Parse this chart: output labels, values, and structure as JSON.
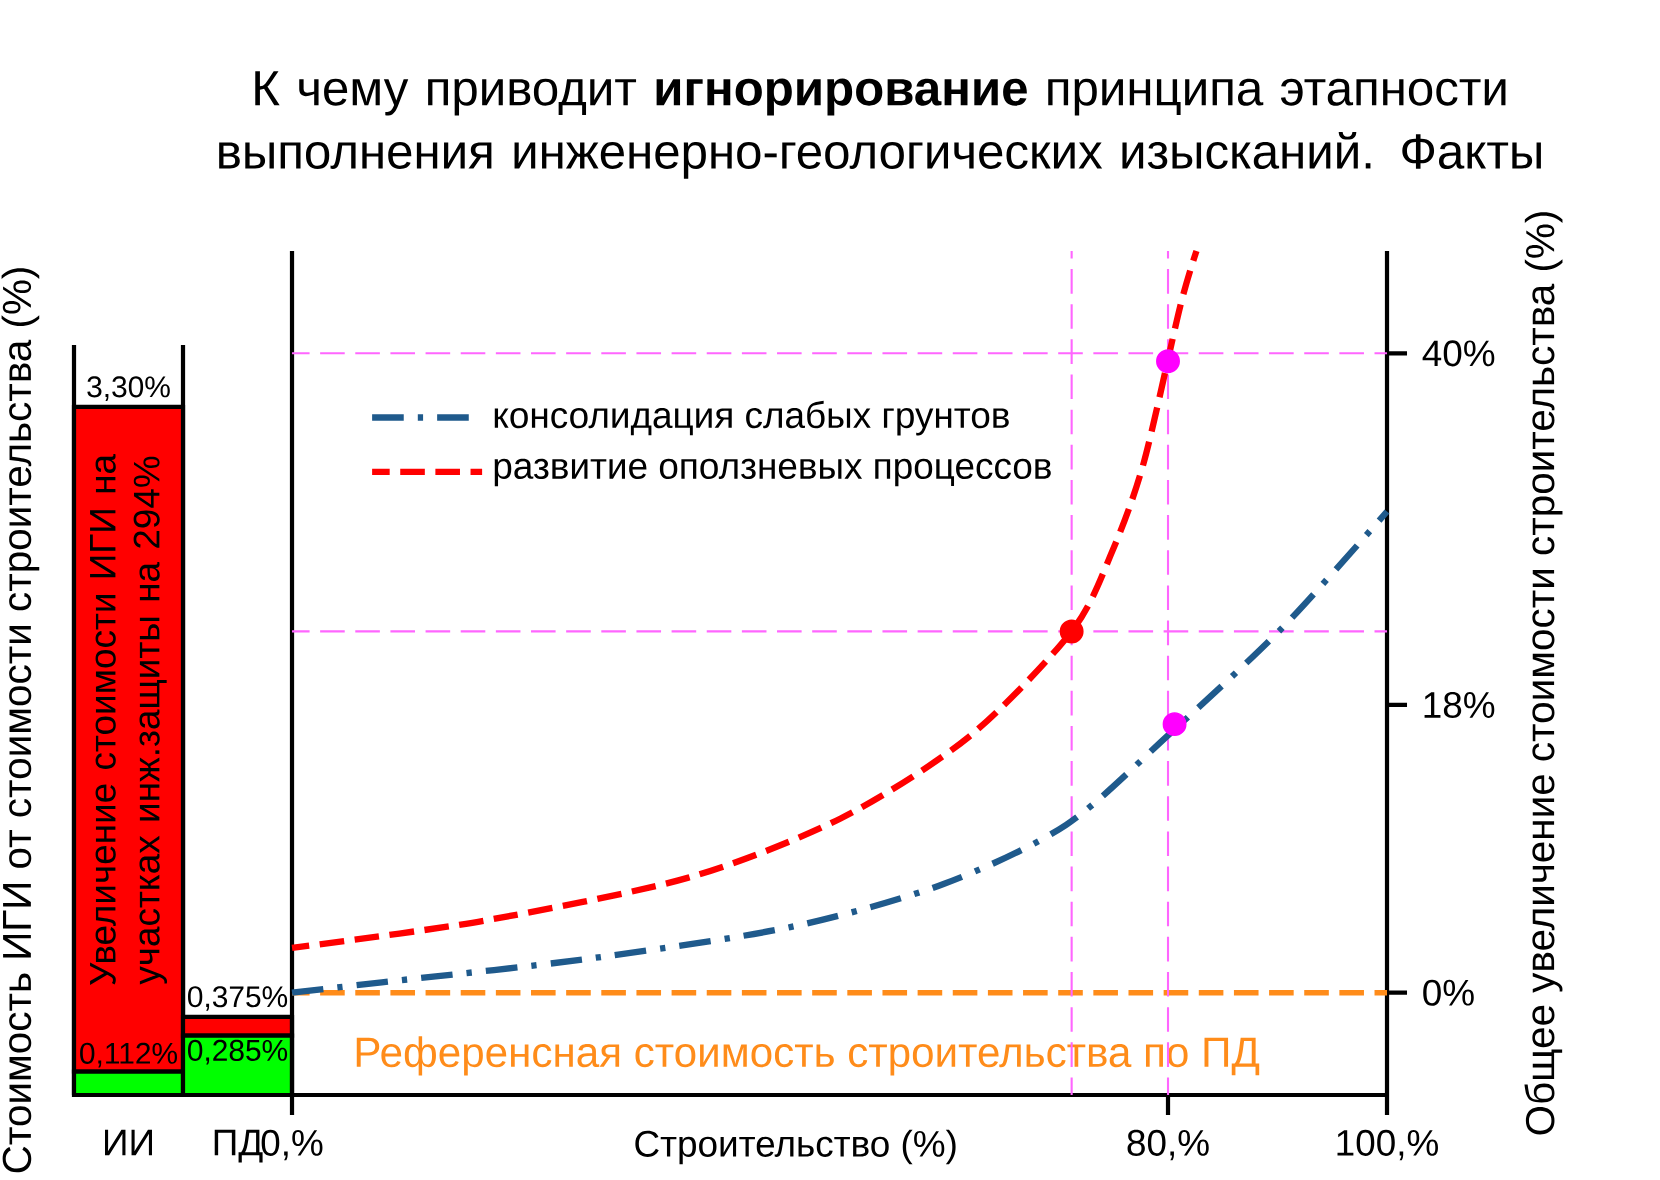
{
  "chart_data": [
    {
      "type": "bar",
      "stacked": true,
      "categories": [
        "ИИ",
        "ПД"
      ],
      "ylabel": "Стоимость ИГИ от стоимости строительства (%)",
      "tick_labels": "x",
      "totals": [
        "3,30%",
        "0,375%"
      ],
      "annotations": [
        "Увеличение стоимости ИГИ на участках инж.защиты на 294%"
      ],
      "series": [
        {
          "color": "#00ff00",
          "values": [
            0.112,
            0.285
          ],
          "value_labels": [
            "0,112%",
            "0,285%"
          ]
        },
        {
          "color": "#ff0000",
          "values": [
            3.188,
            0.09
          ]
        }
      ]
    },
    {
      "type": "line",
      "title": "К чему приводит **игнорирование** принципа этапности выполнения инженерно-геологических изысканий. Факты",
      "xlabel": "Строительство (%)",
      "ylabel": "Общее увеличение стоимости строительства (%)",
      "xlim": [
        0,
        100
      ],
      "ylim": [
        -6.4,
        46.4
      ],
      "xticks": [
        {
          "value": 0,
          "label": "0,%"
        },
        {
          "value": 80,
          "label": "80,%"
        },
        {
          "value": 100,
          "label": "100,%"
        }
      ],
      "yticks": [
        {
          "value": 0,
          "label": "0%"
        },
        {
          "value": 18,
          "label": "18%"
        },
        {
          "value": 40,
          "label": "40%"
        }
      ],
      "legend": "top left",
      "series": [
        {
          "name": "консолидация слабых грунтов",
          "color": "#1f5a8c",
          "line_style": "dashdot",
          "x": [
            0,
            8.2,
            26.8,
            45.5,
            59.5,
            70.7,
            80,
            90.4,
            100
          ],
          "values": [
            0,
            0.65,
            2.1,
            4.1,
            6.8,
            10.5,
            16.1,
            22.8,
            30.1
          ]
        },
        {
          "name": "развитие оползневых процессов",
          "color": "#ff0000",
          "line_style": "dashed",
          "x": [
            0,
            17.5,
            36.2,
            50.1,
            61.8,
            71.2,
            74.9,
            77.8,
            81.1,
            82.6
          ],
          "values": [
            2.8,
            4.5,
            7.2,
            10.9,
            16.0,
            22.6,
            27.6,
            33.2,
            42.9,
            46.4
          ]
        },
        {
          "type": "scatter",
          "marker": "circle",
          "color": "#ff00ff",
          "x": [
            80,
            80.6
          ],
          "values": [
            39.5,
            16.8
          ]
        },
        {
          "type": "scatter",
          "marker": "circle",
          "color": "#ff0000",
          "x": [
            71.2
          ],
          "values": [
            22.6
          ]
        }
      ],
      "ref_lines": [
        {
          "axis": "y",
          "value": 0,
          "label": "Референсная стоимость строительства по ПД",
          "color": "#ff8c1a",
          "line_style": "dashed"
        },
        {
          "axis": "x",
          "value": 80,
          "color": "#ff66ff",
          "line_style": "dashed"
        },
        {
          "axis": "x",
          "value": 71.2,
          "color": "#ff66ff",
          "line_style": "dashed"
        },
        {
          "axis": "y",
          "value": 40,
          "color": "#ff66ff",
          "line_style": "dashed"
        },
        {
          "axis": "y",
          "value": 22.6,
          "color": "#ff66ff",
          "line_style": "dashed"
        }
      ]
    }
  ]
}
